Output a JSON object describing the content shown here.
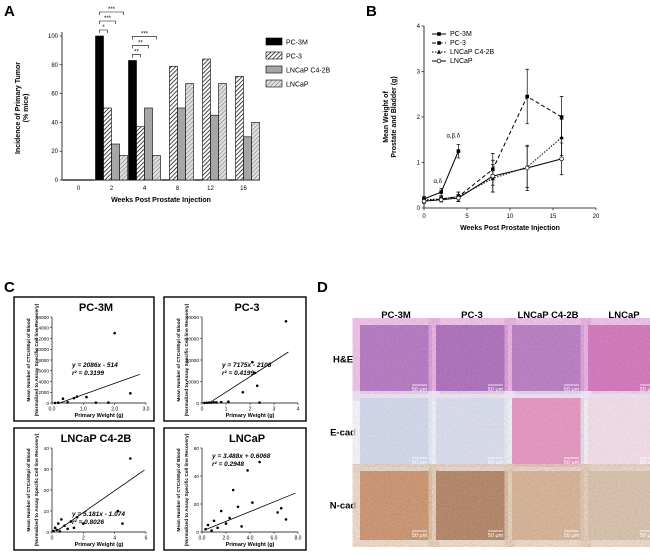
{
  "panels": {
    "A": "A",
    "B": "B",
    "C": "C",
    "D": "D"
  },
  "chart_data": [
    {
      "id": "A",
      "type": "bar",
      "ylabel": "Incidence of Primary Tumor\n(% mice)",
      "xlabel": "Weeks Post Prostate Injection",
      "categories": [
        "0",
        "2",
        "4",
        "8",
        "12",
        "16"
      ],
      "ylim": [
        0,
        100
      ],
      "yticks": [
        0,
        20,
        40,
        60,
        80,
        100
      ],
      "series": [
        {
          "name": "PC-3M",
          "values": [
            0,
            100,
            83,
            0,
            0,
            0
          ],
          "fill": "#000000",
          "pattern": "solid"
        },
        {
          "name": "PC-3",
          "values": [
            0,
            50,
            37,
            79,
            84,
            72
          ],
          "fill": "#ffffff",
          "pattern": "hatch"
        },
        {
          "name": "LNCaP C4-2B",
          "values": [
            0,
            25,
            50,
            50,
            45,
            30
          ],
          "fill": "#a6a6a6",
          "pattern": "solid"
        },
        {
          "name": "LNCaP",
          "values": [
            0,
            17,
            17,
            67,
            67,
            40
          ],
          "fill": "#d0d0d0",
          "pattern": "hatch-light"
        }
      ],
      "significance": [
        {
          "label": "*",
          "group": 1
        },
        {
          "label": "***",
          "group": 1
        },
        {
          "label": "***",
          "group": 1
        },
        {
          "label": "**",
          "group": 2
        },
        {
          "label": "**",
          "group": 2
        },
        {
          "label": "***",
          "group": 2
        }
      ],
      "legend_position": "top-right"
    },
    {
      "id": "B",
      "type": "line",
      "ylabel": "Mean Weight of\nProstate and Bladder (g)",
      "xlabel": "Weeks Post Prostate Injection",
      "xlim": [
        0,
        20
      ],
      "ylim": [
        0,
        4
      ],
      "xticks": [
        0,
        5,
        10,
        15,
        20
      ],
      "yticks": [
        0,
        1,
        2,
        3,
        4
      ],
      "series": [
        {
          "name": "PC-3M",
          "x": [
            0,
            2,
            4
          ],
          "y": [
            0.2,
            0.35,
            1.25
          ],
          "err": [
            0.05,
            0.08,
            0.15
          ],
          "dash": "solid",
          "marker": "square-filled"
        },
        {
          "name": "PC-3",
          "x": [
            0,
            2,
            4,
            8,
            12,
            16
          ],
          "y": [
            0.15,
            0.2,
            0.25,
            0.85,
            2.45,
            2.0
          ],
          "err": [
            0.05,
            0.05,
            0.1,
            0.35,
            0.6,
            0.45
          ],
          "dash": "dashed",
          "marker": "square-filled"
        },
        {
          "name": "LNCaP C4-2B",
          "x": [
            0,
            2,
            4,
            8,
            12,
            16
          ],
          "y": [
            0.18,
            0.2,
            0.25,
            0.65,
            0.9,
            1.55
          ],
          "err": [
            0.03,
            0.04,
            0.1,
            0.3,
            0.45,
            0.4
          ],
          "dash": "dotted",
          "marker": "triangle"
        },
        {
          "name": "LNCaP",
          "x": [
            0,
            2,
            4,
            8,
            12,
            16
          ],
          "y": [
            0.15,
            0.18,
            0.22,
            0.7,
            0.88,
            1.08
          ],
          "err": [
            0.03,
            0.05,
            0.08,
            0.35,
            0.5,
            0.35
          ],
          "dash": "solid",
          "marker": "circle-open"
        }
      ],
      "annotations": [
        {
          "text": "α,δ",
          "x": 1.6,
          "y": 0.55
        },
        {
          "text": "α,β,δ",
          "x": 3.4,
          "y": 1.55
        }
      ],
      "legend_position": "top-left"
    },
    {
      "id": "C1",
      "type": "scatter",
      "title": "PC-3M",
      "ylabel": "Mean Number of CTCs/50μl of Blood\n(Normalized to Assay Specific Cell line Recovery)",
      "xlabel": "Primary Weight (g)",
      "xlim": [
        0,
        3
      ],
      "ylim": [
        0,
        16000
      ],
      "xticks": [
        "0.0",
        "1.0",
        "2.0",
        "3.0"
      ],
      "yticks": [
        "0",
        "2000",
        "4000",
        "6000",
        "8000",
        "10000",
        "12000",
        "14000",
        "16000"
      ],
      "points": [
        [
          0.1,
          20
        ],
        [
          0.2,
          50
        ],
        [
          0.35,
          800
        ],
        [
          0.5,
          120
        ],
        [
          0.7,
          900
        ],
        [
          0.8,
          1200
        ],
        [
          1.1,
          1100
        ],
        [
          1.4,
          60
        ],
        [
          1.8,
          80
        ],
        [
          2.0,
          13000
        ],
        [
          2.5,
          1800
        ]
      ],
      "fit": {
        "slope": 2086,
        "intercept": -514,
        "x0": 0.2,
        "x1": 2.8
      },
      "equation": "y = 2086x - 514",
      "r2": "r² = 0.3199"
    },
    {
      "id": "C2",
      "type": "scatter",
      "title": "PC-3",
      "ylabel": "Mean Number of CTCs/50μl of Blood\n(Normalized to Assay Specific Cell line Recovery)",
      "xlabel": "Primary Weight (g)",
      "xlim": [
        0,
        4
      ],
      "ylim": [
        0,
        40000
      ],
      "xticks": [
        "0",
        "1",
        "2",
        "3",
        "4"
      ],
      "yticks": [
        "0",
        "10000",
        "20000",
        "30000",
        "40000"
      ],
      "points": [
        [
          0.1,
          50
        ],
        [
          0.2,
          100
        ],
        [
          0.3,
          200
        ],
        [
          0.4,
          150
        ],
        [
          0.5,
          300
        ],
        [
          0.6,
          250
        ],
        [
          0.8,
          400
        ],
        [
          1.1,
          600
        ],
        [
          1.7,
          5000
        ],
        [
          2.1,
          19000
        ],
        [
          2.2,
          14000
        ],
        [
          2.3,
          8000
        ],
        [
          2.4,
          200
        ],
        [
          3.5,
          38000
        ]
      ],
      "fit": {
        "slope": 7175,
        "intercept": -2108,
        "x0": 0.3,
        "x1": 3.6
      },
      "equation": "y = 7175x - 2108",
      "r2": "r² = 0.4199"
    },
    {
      "id": "C3",
      "type": "scatter",
      "title": "LNCaP C4-2B",
      "ylabel": "Mean Number of CTCs/50μl of Blood\n(Normalized to Assay Specific Cell line Recovery)",
      "xlabel": "Primary Weight (g)",
      "xlim": [
        0,
        6
      ],
      "ylim": [
        0,
        40
      ],
      "xticks": [
        "0",
        "2",
        "4",
        "6"
      ],
      "yticks": [
        "0",
        "10",
        "20",
        "30",
        "40"
      ],
      "points": [
        [
          0.1,
          0.5
        ],
        [
          0.2,
          2
        ],
        [
          0.3,
          1
        ],
        [
          0.4,
          4
        ],
        [
          0.5,
          0.3
        ],
        [
          0.6,
          6
        ],
        [
          0.8,
          3
        ],
        [
          1.0,
          1.5
        ],
        [
          1.2,
          5
        ],
        [
          1.4,
          2
        ],
        [
          1.6,
          7
        ],
        [
          2.0,
          4
        ],
        [
          4.2,
          10
        ],
        [
          4.5,
          4
        ],
        [
          5.0,
          35
        ]
      ],
      "fit": {
        "slope": 5.181,
        "intercept": -1.074,
        "x0": 0.3,
        "x1": 5.9
      },
      "equation": "y = 5.181x - 1.074",
      "r2": "r² = 0.8026"
    },
    {
      "id": "C4",
      "type": "scatter",
      "title": "LNCaP",
      "ylabel": "Mean Number of CTCs/50μl of Blood\n(Normalized to Assay Specific Cell line Recovery)",
      "xlabel": "Primary Weight (g)",
      "xlim": [
        0,
        8
      ],
      "ylim": [
        0,
        60
      ],
      "xticks": [
        "0.0",
        "2.0",
        "4.0",
        "6.0",
        "8.0"
      ],
      "yticks": [
        "0",
        "20",
        "40",
        "60"
      ],
      "points": [
        [
          0.3,
          2
        ],
        [
          0.5,
          5
        ],
        [
          0.8,
          1
        ],
        [
          1.0,
          8
        ],
        [
          1.3,
          3
        ],
        [
          1.6,
          15
        ],
        [
          2.0,
          6
        ],
        [
          2.3,
          10
        ],
        [
          2.6,
          30
        ],
        [
          3.0,
          18
        ],
        [
          3.3,
          4
        ],
        [
          3.8,
          44
        ],
        [
          4.2,
          21
        ],
        [
          4.8,
          50
        ],
        [
          6.3,
          14
        ],
        [
          6.6,
          17
        ],
        [
          7.0,
          9
        ]
      ],
      "fit": {
        "slope": 3.488,
        "intercept": 0.6068,
        "x0": 0.2,
        "x1": 7.8
      },
      "equation": "y = 3.488x + 0.6068",
      "r2": "r² = 0.2948"
    }
  ],
  "histology": {
    "columns": [
      "PC-3M",
      "PC-3",
      "LNCaP C4-2B",
      "LNCaP"
    ],
    "rows": [
      "H&E",
      "E-cad",
      "N-cad"
    ],
    "scale_bar": "50 μm"
  }
}
